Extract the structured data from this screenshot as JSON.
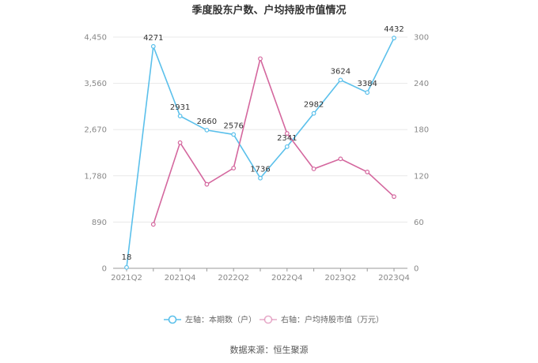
{
  "chart_data": {
    "type": "line",
    "title": "季度股东户数、户均持股市值情况",
    "categories": [
      "2021Q2",
      "2021Q3",
      "2021Q4",
      "2022Q1",
      "2022Q2",
      "2022Q3",
      "2022Q4",
      "2023Q1",
      "2023Q2",
      "2023Q3",
      "2023Q4"
    ],
    "x_tick_labels": [
      "2021Q2",
      "2021Q4",
      "2022Q2",
      "2022Q4",
      "2023Q2",
      "2023Q4"
    ],
    "series": [
      {
        "name": "左轴：本期数（户）",
        "axis": "left",
        "color": "#5bc0eb",
        "values": [
          18,
          4271,
          2931,
          2660,
          2576,
          1736,
          2341,
          2982,
          3624,
          3384,
          4432
        ],
        "labels": [
          "18",
          "4271",
          "2931",
          "2660",
          "2576",
          "1736",
          "2341",
          "2982",
          "3624",
          "3384",
          "4432"
        ]
      },
      {
        "name": "右轴：户均持股市值（万元）",
        "axis": "right",
        "color": "#d4679e",
        "values": [
          null,
          57,
          163,
          109,
          130,
          272,
          175,
          129,
          142,
          125,
          93
        ]
      }
    ],
    "y_left": {
      "min": 0,
      "max": 4450,
      "ticks": [
        0,
        890,
        1780,
        2670,
        3560,
        4450
      ],
      "tick_labels": [
        "0",
        "890",
        "1,780",
        "2,670",
        "3,560",
        "4,450"
      ]
    },
    "y_right": {
      "min": 0,
      "max": 300,
      "ticks": [
        0,
        60,
        120,
        180,
        240,
        300
      ],
      "tick_labels": [
        "0",
        "60",
        "120",
        "180",
        "240",
        "300"
      ]
    },
    "grid": true,
    "legend_position": "bottom"
  },
  "source_text": "数据来源：恒生聚源"
}
